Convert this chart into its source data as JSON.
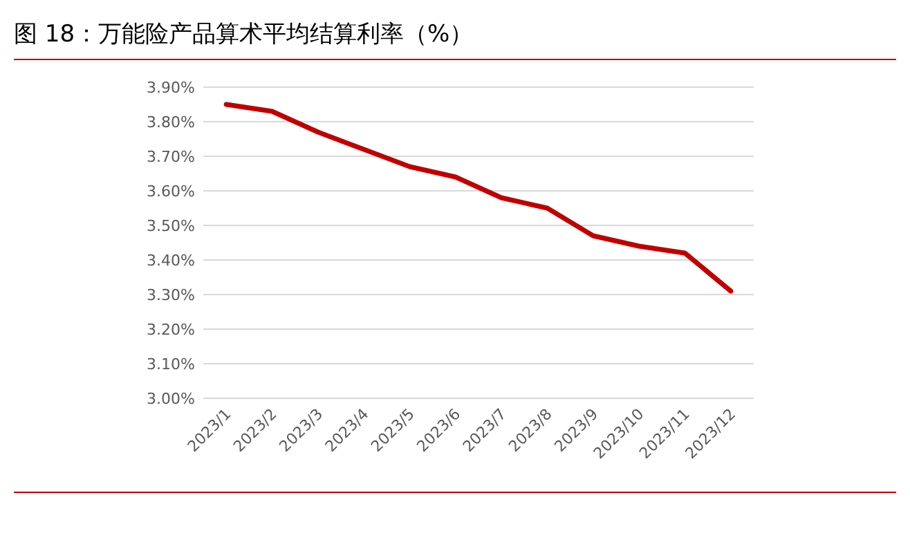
{
  "chart_data": {
    "type": "line",
    "title": "图 18：万能险产品算术平均结算利率（%）",
    "categories": [
      "2023/1",
      "2023/2",
      "2023/3",
      "2023/4",
      "2023/5",
      "2023/6",
      "2023/7",
      "2023/8",
      "2023/9",
      "2023/10",
      "2023/11",
      "2023/12"
    ],
    "series": [
      {
        "color": "#c00000",
        "values": [
          3.85,
          3.83,
          3.77,
          3.72,
          3.67,
          3.64,
          3.58,
          3.55,
          3.47,
          3.44,
          3.42,
          3.31
        ]
      }
    ],
    "ylim": [
      3.0,
      3.9
    ],
    "yticks": [
      {
        "value": 3.0,
        "label": "3.00%"
      },
      {
        "value": 3.1,
        "label": "3.10%"
      },
      {
        "value": 3.2,
        "label": "3.20%"
      },
      {
        "value": 3.3,
        "label": "3.30%"
      },
      {
        "value": 3.4,
        "label": "3.40%"
      },
      {
        "value": 3.5,
        "label": "3.50%"
      },
      {
        "value": 3.6,
        "label": "3.60%"
      },
      {
        "value": 3.7,
        "label": "3.70%"
      },
      {
        "value": 3.8,
        "label": "3.80%"
      },
      {
        "value": 3.9,
        "label": "3.90%"
      }
    ],
    "grid": "y",
    "marker": "none",
    "line_style": "solid"
  }
}
